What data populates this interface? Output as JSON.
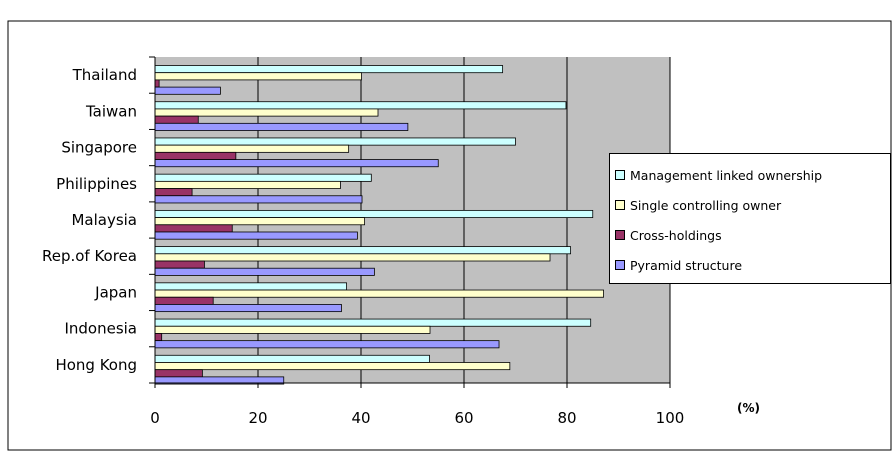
{
  "chart_data": {
    "type": "bar",
    "orientation": "horizontal",
    "title": "",
    "xlabel": "(%)",
    "ylabel": "",
    "xlim": [
      0,
      100
    ],
    "x_ticks": [
      "0",
      "20",
      "40",
      "60",
      "80",
      "100"
    ],
    "grid": "vertical major gridlines",
    "background": "#c0c0c0",
    "legend_position": "right",
    "categories": [
      "Thailand",
      "Taiwan",
      "Singapore",
      "Philippines",
      "Malaysia",
      "Rep.of Korea",
      "Japan",
      "Indonesia",
      "Hong Kong"
    ],
    "series": [
      {
        "name": "Management linked ownership",
        "color": "#ccffff",
        "values": [
          67.5,
          79.8,
          70.0,
          42.0,
          85.0,
          80.7,
          37.2,
          84.6,
          53.3
        ]
      },
      {
        "name": "Single controlling owner",
        "color": "#ffffcc",
        "values": [
          40.1,
          43.3,
          37.6,
          36.0,
          40.7,
          76.7,
          87.1,
          53.4,
          68.9
        ]
      },
      {
        "name": "Cross-holdings",
        "color": "#993366",
        "values": [
          0.8,
          8.4,
          15.7,
          7.2,
          15.0,
          9.6,
          11.3,
          1.3,
          9.2
        ]
      },
      {
        "name": "Pyramid structure",
        "color": "#9999ff",
        "values": [
          12.7,
          49.1,
          55.0,
          40.2,
          39.3,
          42.6,
          36.2,
          66.8,
          25.0
        ]
      }
    ]
  }
}
